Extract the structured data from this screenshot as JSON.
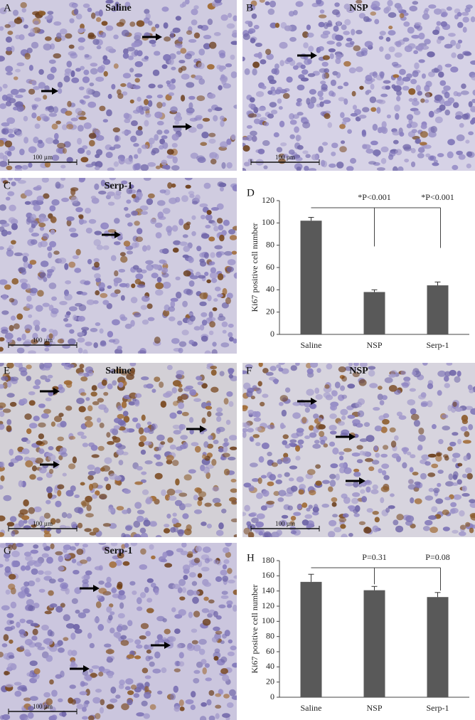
{
  "panels": [
    {
      "label": "A",
      "title": "Saline",
      "scale_bar": "100 µm"
    },
    {
      "label": "B",
      "title": "NSP",
      "scale_bar": "100 µm"
    },
    {
      "label": "C",
      "title": "Serp-1",
      "scale_bar": "100 µm"
    },
    {
      "label": "E",
      "title": "Saline",
      "scale_bar": "100 µm"
    },
    {
      "label": "F",
      "title": "NSP",
      "scale_bar": "100 µm"
    },
    {
      "label": "G",
      "title": "Serp-1",
      "scale_bar": "100 µm"
    }
  ],
  "chart_data": [
    {
      "type": "bar",
      "panel_label": "D",
      "ylabel": "Ki67 positive cell number",
      "categories": [
        "Saline",
        "NSP",
        "Serp-1"
      ],
      "values": [
        102,
        38,
        44
      ],
      "errors": [
        3,
        2,
        3
      ],
      "color": "#595959",
      "ylim": [
        0,
        120
      ],
      "yticks": [
        0,
        20,
        40,
        60,
        80,
        100,
        120
      ],
      "annotations": [
        "*P<0.001",
        "*P<0.001"
      ]
    },
    {
      "type": "bar",
      "panel_label": "H",
      "ylabel": "Ki67 positive cell number",
      "categories": [
        "Saline",
        "NSP",
        "Serp-1"
      ],
      "values": [
        152,
        141,
        132
      ],
      "errors": [
        10,
        5,
        6
      ],
      "color": "#595959",
      "ylim": [
        0,
        180
      ],
      "yticks": [
        0,
        20,
        40,
        60,
        80,
        100,
        120,
        140,
        160,
        180
      ],
      "annotations": [
        "P=0.31",
        "P=0.08"
      ]
    }
  ]
}
